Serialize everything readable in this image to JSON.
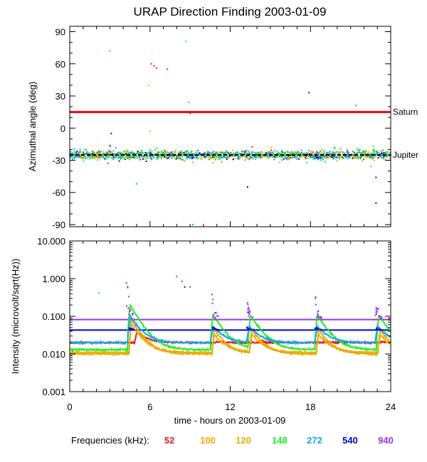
{
  "title": "URAP Direction Finding  2003-01-09",
  "colors": {
    "52": "#e41a1c",
    "100": "#ffa500",
    "120": "#e0b000",
    "148": "#22ee22",
    "272": "#11aaee",
    "540": "#0000cc",
    "940": "#9933ee",
    "reference_line": "#ff0000",
    "jupiter_line": "#000000"
  },
  "chart_data": [
    {
      "type": "scatter",
      "name": "azimuth",
      "ylabel": "Azimuthal angle (deg)",
      "xlabel": "",
      "xlim": [
        0,
        24
      ],
      "ylim": [
        -92,
        95
      ],
      "yticks": [
        90,
        60,
        30,
        0,
        -30,
        -60,
        -90
      ],
      "ytick_labels": [
        "90",
        "60",
        "30",
        "0",
        "-30",
        "-60",
        "-90"
      ],
      "reference_lines": [
        {
          "label": "Saturn",
          "y": 15,
          "color": "#ff0000"
        },
        {
          "label": "Jupiter",
          "y": -25,
          "color": "#000000",
          "style": "dashed"
        }
      ],
      "band": {
        "center": -25,
        "spread": 4
      },
      "outliers": [
        {
          "x": 3.0,
          "y": 72,
          "freq": "148"
        },
        {
          "x": 6.1,
          "y": 60,
          "freq": "52"
        },
        {
          "x": 6.3,
          "y": 58,
          "freq": "52"
        },
        {
          "x": 6.5,
          "y": 56,
          "freq": "52"
        },
        {
          "x": 7.3,
          "y": 55,
          "freq": "52"
        },
        {
          "x": 5.9,
          "y": 40,
          "freq": "100"
        },
        {
          "x": 8.7,
          "y": 81,
          "freq": "148"
        },
        {
          "x": 8.9,
          "y": 24,
          "freq": "148"
        },
        {
          "x": 9.0,
          "y": 14,
          "freq": "540"
        },
        {
          "x": 17.9,
          "y": 33,
          "freq": "540"
        },
        {
          "x": 21.4,
          "y": 21,
          "freq": "272"
        },
        {
          "x": 5.0,
          "y": -52,
          "freq": "272"
        },
        {
          "x": 13.3,
          "y": -55,
          "freq": "540"
        },
        {
          "x": 22.9,
          "y": -46,
          "freq": "540"
        },
        {
          "x": 22.9,
          "y": -70,
          "freq": "540"
        },
        {
          "x": 9.2,
          "y": -90,
          "freq": "272"
        },
        {
          "x": 6.0,
          "y": -3,
          "freq": "100"
        },
        {
          "x": 3.1,
          "y": -5,
          "freq": "540"
        }
      ]
    },
    {
      "type": "line",
      "name": "intensity",
      "ylabel": "Intensity (microvolt/sqrt(Hz))",
      "xlabel": "time - hours on 2003-01-09",
      "xlim": [
        0,
        24
      ],
      "xticks": [
        0,
        6,
        12,
        18,
        24
      ],
      "xtick_labels": [
        "0",
        "6",
        "12",
        "18",
        "24"
      ],
      "yscale": "log",
      "ylim": [
        0.001,
        10
      ],
      "yticks": [
        10,
        1,
        0.1,
        0.01,
        0.001
      ],
      "ytick_labels": [
        "10.000",
        "1.000",
        "0.100",
        "0.010",
        "0.001"
      ],
      "baselines": [
        {
          "freq": "940",
          "value": 0.082
        },
        {
          "freq": "540",
          "value": 0.043
        }
      ],
      "burst_times": [
        4.3,
        10.7,
        13.3,
        18.4,
        22.9
      ],
      "series": [
        {
          "freq": "52",
          "base": 0.02,
          "peaks": [
            5.0,
            11.0,
            14.2,
            19.0,
            23.4
          ],
          "peak_value": 0.038
        },
        {
          "freq": "100",
          "base": 0.011,
          "peaks": [
            4.6,
            10.8,
            13.6,
            18.6,
            23.2
          ],
          "peak_value": 0.06
        },
        {
          "freq": "120",
          "base": 0.01,
          "peaks": [
            4.6,
            10.8,
            13.6,
            18.6,
            23.2
          ],
          "peak_value": 0.08
        },
        {
          "freq": "148",
          "base": 0.013,
          "peaks": [
            4.5,
            10.7,
            13.5,
            18.5,
            23.1
          ],
          "peak_value": 0.2
        },
        {
          "freq": "272",
          "base": 0.02,
          "peaks": [
            4.5,
            10.7,
            13.4,
            18.5,
            23.0
          ],
          "peak_value": 0.1
        },
        {
          "freq": "540",
          "base": 0.043,
          "peaks": [
            4.4,
            10.7,
            13.3,
            18.4,
            22.9
          ],
          "peak_value": 0.06
        },
        {
          "freq": "940",
          "base": 0.082,
          "peaks": [
            4.3,
            10.7,
            13.3,
            18.4,
            22.9
          ],
          "peak_value": 1.6
        }
      ],
      "isolated_points": [
        {
          "x": 2.2,
          "y": 0.42,
          "freq": "148"
        },
        {
          "x": 8.0,
          "y": 1.15,
          "freq": "940"
        },
        {
          "x": 8.4,
          "y": 0.85,
          "freq": "940"
        },
        {
          "x": 8.6,
          "y": 0.6,
          "freq": "540"
        },
        {
          "x": 9.0,
          "y": 0.6,
          "freq": "940"
        }
      ]
    }
  ],
  "legend": {
    "label": "Frequencies (kHz):",
    "items": [
      {
        "freq": "52",
        "text": "52"
      },
      {
        "freq": "100",
        "text": "100"
      },
      {
        "freq": "120",
        "text": "120"
      },
      {
        "freq": "148",
        "text": "148"
      },
      {
        "freq": "272",
        "text": "272"
      },
      {
        "freq": "540",
        "text": "540"
      },
      {
        "freq": "940",
        "text": "940"
      }
    ]
  }
}
